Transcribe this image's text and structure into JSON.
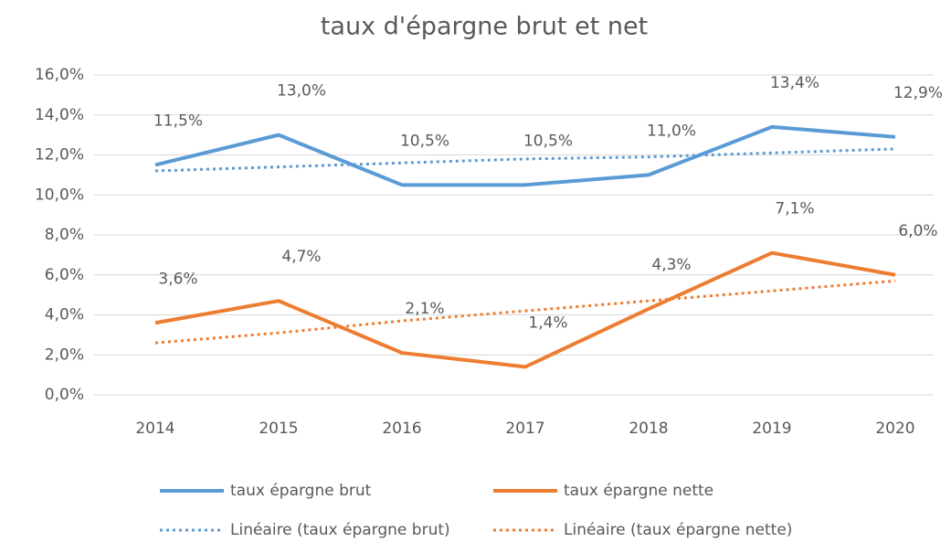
{
  "chart_data": {
    "type": "line",
    "title": "taux d'épargne brut et net",
    "categories": [
      "2014",
      "2015",
      "2016",
      "2017",
      "2018",
      "2019",
      "2020"
    ],
    "series": [
      {
        "name": "taux épargne brut",
        "color": "#5b9bd5",
        "values": [
          11.5,
          13.0,
          10.5,
          10.5,
          11.0,
          13.4,
          12.9
        ],
        "value_labels": [
          "11,5%",
          "13,0%",
          "10,5%",
          "10,5%",
          "11,0%",
          "13,4%",
          "12,9%"
        ]
      },
      {
        "name": "taux épargne nette",
        "color": "#ed7d31",
        "values": [
          3.6,
          4.7,
          2.1,
          1.4,
          4.3,
          7.1,
          6.0
        ],
        "value_labels": [
          "3,6%",
          "4,7%",
          "2,1%",
          "1,4%",
          "4,3%",
          "7,1%",
          "6,0%"
        ]
      },
      {
        "name": "Linéaire (taux épargne brut)",
        "color": "#5b9bd5",
        "dashed": true,
        "values": [
          11.2,
          11.4,
          11.6,
          11.8,
          11.9,
          12.1,
          12.3
        ]
      },
      {
        "name": "Linéaire (taux épargne nette)",
        "color": "#ed7d31",
        "dashed": true,
        "values": [
          2.6,
          3.1,
          3.7,
          4.2,
          4.7,
          5.2,
          5.7
        ]
      }
    ],
    "ylim": [
      0,
      16
    ],
    "yticks": [
      {
        "value": 0,
        "label": "0,0%"
      },
      {
        "value": 2,
        "label": "2,0%"
      },
      {
        "value": 4,
        "label": "4,0%"
      },
      {
        "value": 6,
        "label": "6,0%"
      },
      {
        "value": 8,
        "label": "8,0%"
      },
      {
        "value": 10,
        "label": "10,0%"
      },
      {
        "value": 12,
        "label": "12,0%"
      },
      {
        "value": 14,
        "label": "14,0%"
      },
      {
        "value": 16,
        "label": "16,0%"
      }
    ],
    "grid": true,
    "legend": "bottom"
  }
}
